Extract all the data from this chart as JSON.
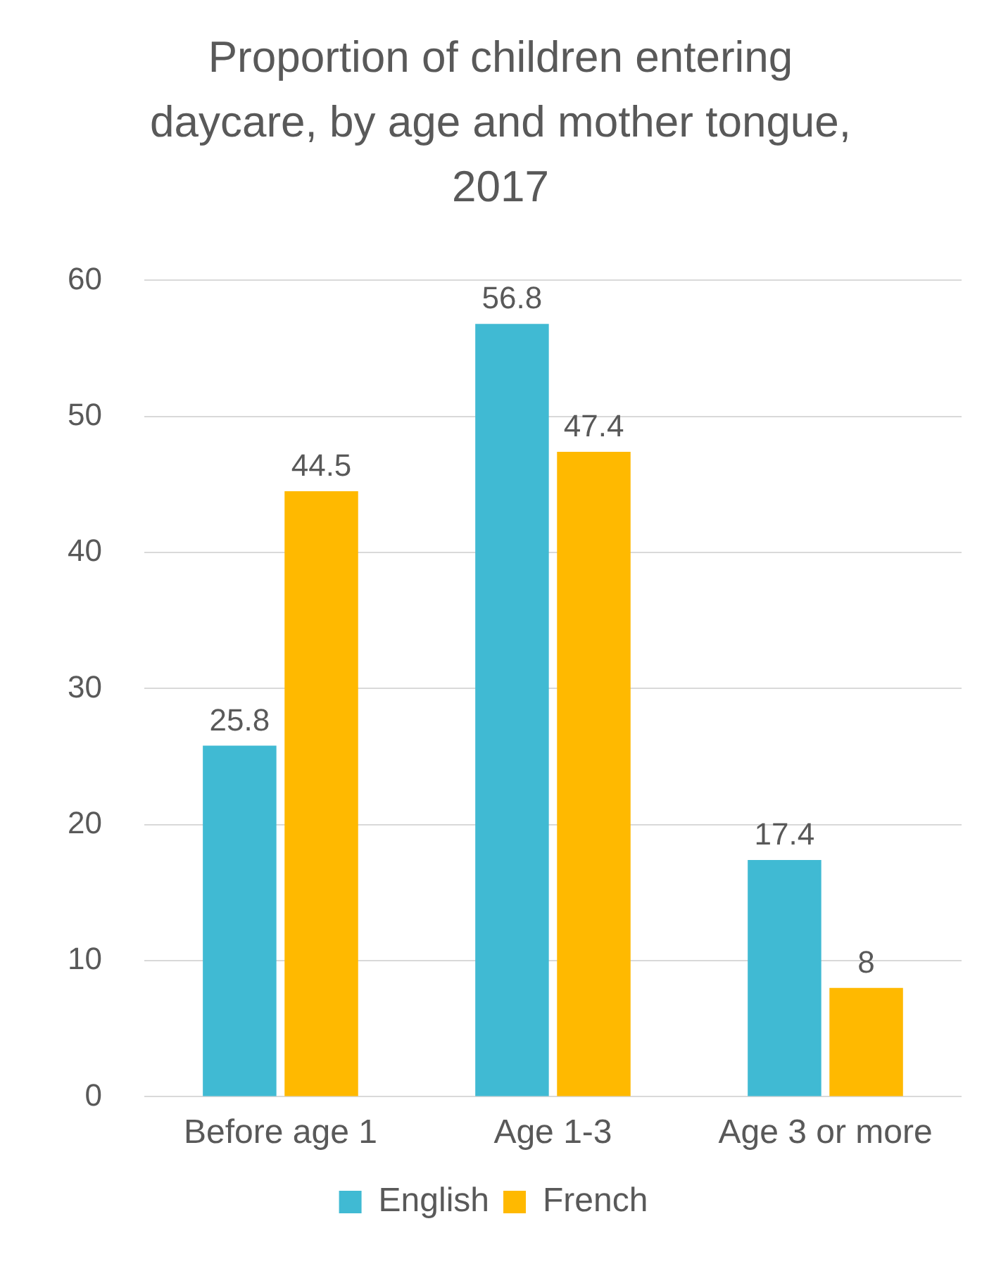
{
  "chart_data": {
    "type": "bar",
    "title": "Proportion of children entering daycare, by age and mother tongue, 2017",
    "categories": [
      "Before age 1",
      "Age 1-3",
      "Age 3 or more"
    ],
    "series": [
      {
        "name": "English",
        "color": "#40bad3",
        "values": [
          25.8,
          56.8,
          17.4
        ]
      },
      {
        "name": "French",
        "color": "#ffb900",
        "values": [
          44.5,
          47.4,
          8
        ]
      }
    ],
    "ylim": [
      0,
      60
    ],
    "yticks": [
      0,
      10,
      20,
      30,
      40,
      50,
      60
    ],
    "grid": "y",
    "legend": "bottom",
    "data_labels": true
  }
}
